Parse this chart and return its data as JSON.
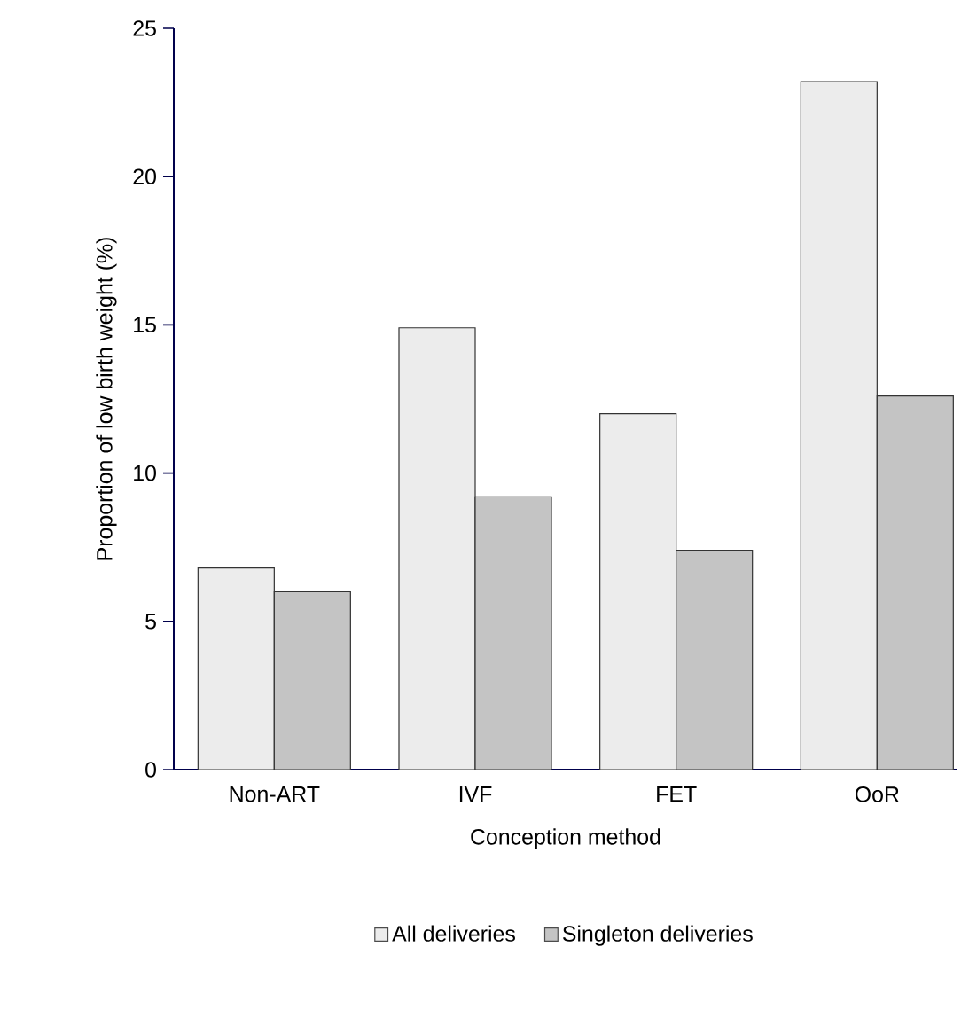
{
  "chart_data": {
    "type": "bar",
    "xlabel": "Conception method",
    "ylabel": "Proportion of low birth weight (%)",
    "categories": [
      "Non-ART",
      "IVF",
      "FET",
      "OoR"
    ],
    "series": [
      {
        "name": "All deliveries",
        "color": "#ececec",
        "values": [
          6.8,
          14.9,
          12.0,
          23.2
        ]
      },
      {
        "name": "Singleton deliveries",
        "color": "#c4c4c4",
        "values": [
          6.0,
          9.2,
          7.4,
          12.6
        ]
      }
    ],
    "ylim": [
      0,
      25
    ],
    "yticks": [
      0,
      5,
      10,
      15,
      20,
      25
    ],
    "legend": "bottom",
    "grid": false
  }
}
